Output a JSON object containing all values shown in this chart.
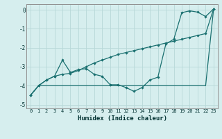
{
  "xlabel": "Humidex (Indice chaleur)",
  "background_color": "#d6eeee",
  "grid_color": "#b8d8d8",
  "line_color": "#1a7070",
  "xlim": [
    -0.5,
    23.5
  ],
  "ylim": [
    -5.2,
    0.3
  ],
  "x": [
    0,
    1,
    2,
    3,
    4,
    5,
    6,
    7,
    8,
    9,
    10,
    11,
    12,
    13,
    14,
    15,
    16,
    17,
    18,
    19,
    20,
    21,
    22,
    23
  ],
  "line1_y": [
    -4.5,
    -4.0,
    -3.7,
    -3.5,
    -2.65,
    -3.3,
    -3.15,
    -3.1,
    -3.4,
    -3.5,
    -3.95,
    -3.95,
    -4.1,
    -4.3,
    -4.1,
    -3.7,
    -3.55,
    -1.8,
    -1.55,
    -0.15,
    -0.05,
    -0.12,
    -0.35,
    0.05
  ],
  "line2_y": [
    -4.5,
    -4.0,
    -3.7,
    -3.5,
    -3.4,
    -3.35,
    -3.2,
    -3.0,
    -2.8,
    -2.65,
    -2.5,
    -2.35,
    -2.25,
    -2.15,
    -2.05,
    -1.95,
    -1.85,
    -1.75,
    -1.65,
    -1.55,
    -1.45,
    -1.35,
    -1.25,
    0.05
  ],
  "line3_y": [
    -4.5,
    -4.0,
    -4.0,
    -4.0,
    -4.0,
    -4.0,
    -4.0,
    -4.0,
    -4.0,
    -4.0,
    -4.0,
    -4.0,
    -4.0,
    -4.0,
    -4.0,
    -4.0,
    -4.0,
    -4.0,
    -4.0,
    -4.0,
    -4.0,
    -4.0,
    -4.0,
    0.05
  ],
  "yticks": [
    0,
    -1,
    -2,
    -3,
    -4,
    -5
  ],
  "xticks": [
    0,
    1,
    2,
    3,
    4,
    5,
    6,
    7,
    8,
    9,
    10,
    11,
    12,
    13,
    14,
    15,
    16,
    17,
    18,
    19,
    20,
    21,
    22,
    23
  ]
}
